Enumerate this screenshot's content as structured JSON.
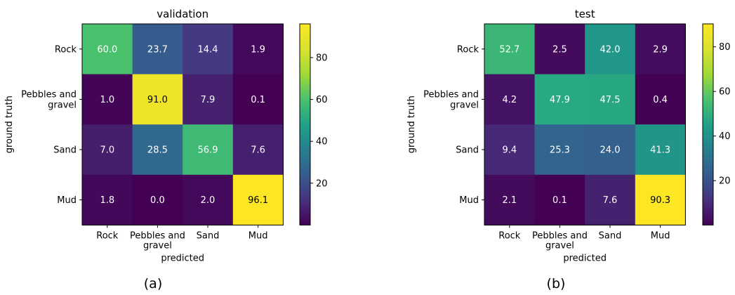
{
  "chart_data": [
    {
      "type": "heatmap",
      "title": "validation",
      "caption": "(a)",
      "xlabel": "predicted",
      "ylabel": "ground truth",
      "x_categories": [
        "Rock",
        "Pebbles and\ngravel",
        "Sand",
        "Mud"
      ],
      "y_categories": [
        "Rock",
        "Pebbles and\ngravel",
        "Sand",
        "Mud"
      ],
      "values": [
        [
          60.0,
          23.7,
          14.4,
          1.9
        ],
        [
          1.0,
          91.0,
          7.9,
          0.1
        ],
        [
          7.0,
          28.5,
          56.9,
          7.6
        ],
        [
          1.8,
          0.0,
          2.0,
          96.1
        ]
      ],
      "value_labels": [
        [
          "60.0",
          "23.7",
          "14.4",
          "1.9"
        ],
        [
          "1.0",
          "91.0",
          "7.9",
          "0.1"
        ],
        [
          "7.0",
          "28.5",
          "56.9",
          "7.6"
        ],
        [
          "1.8",
          "0.0",
          "2.0",
          "96.1"
        ]
      ],
      "colormap": "viridis",
      "colorbar": {
        "range": [
          0.0,
          96.1
        ],
        "ticks": [
          20,
          40,
          60,
          80
        ]
      }
    },
    {
      "type": "heatmap",
      "title": "test",
      "caption": "(b)",
      "xlabel": "predicted",
      "ylabel": "ground truth",
      "x_categories": [
        "Rock",
        "Pebbles and\ngravel",
        "Sand",
        "Mud"
      ],
      "y_categories": [
        "Rock",
        "Pebbles and\ngravel",
        "Sand",
        "Mud"
      ],
      "values": [
        [
          52.7,
          2.5,
          42.0,
          2.9
        ],
        [
          4.2,
          47.9,
          47.5,
          0.4
        ],
        [
          9.4,
          25.3,
          24.0,
          41.3
        ],
        [
          2.1,
          0.1,
          7.6,
          90.3
        ]
      ],
      "value_labels": [
        [
          "52.7",
          "2.5",
          "42.0",
          "2.9"
        ],
        [
          "4.2",
          "47.9",
          "47.5",
          "0.4"
        ],
        [
          "9.4",
          "25.3",
          "24.0",
          "41.3"
        ],
        [
          "2.1",
          "0.1",
          "7.6",
          "90.3"
        ]
      ],
      "colormap": "viridis",
      "colorbar": {
        "range": [
          0.1,
          90.3
        ],
        "ticks": [
          20,
          40,
          60,
          80
        ]
      }
    }
  ]
}
